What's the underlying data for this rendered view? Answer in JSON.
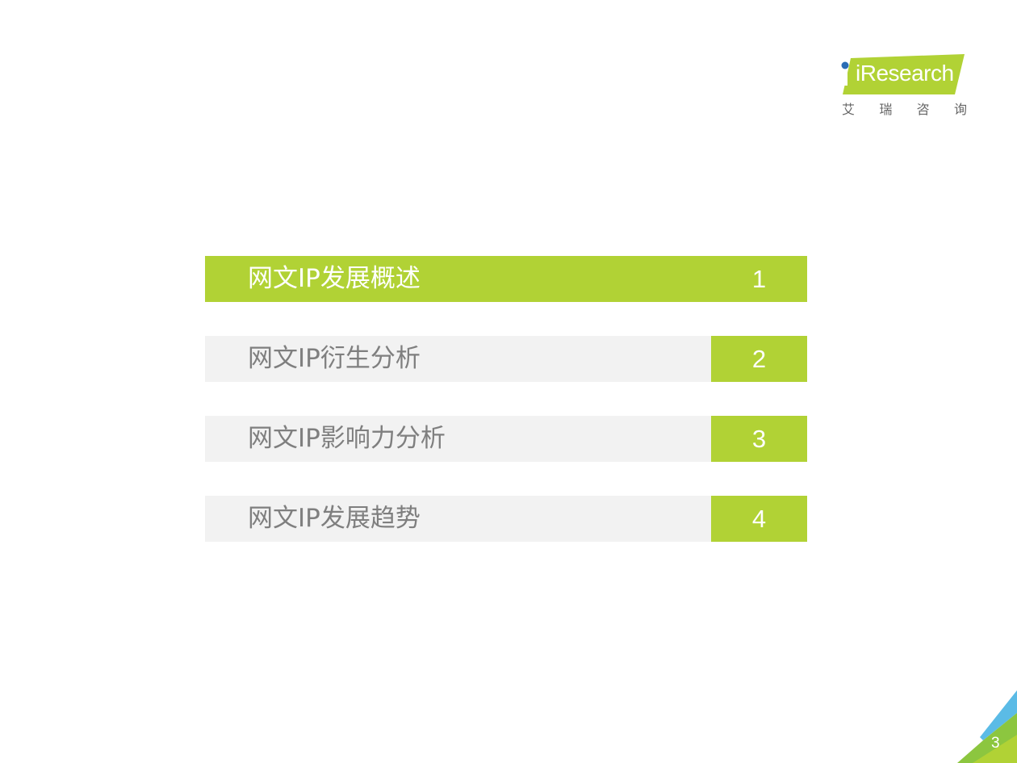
{
  "logo": {
    "brand": "iResearch",
    "cn_chars": [
      "艾",
      "瑞",
      "咨",
      "询"
    ],
    "brand_color": "#b1d235",
    "dot_color": "#2a6db5"
  },
  "toc": {
    "items": [
      {
        "label": "网文IP发展概述",
        "number": "1",
        "active": true
      },
      {
        "label": "网文IP衍生分析",
        "number": "2",
        "active": false
      },
      {
        "label": "网文IP影响力分析",
        "number": "3",
        "active": false
      },
      {
        "label": "网文IP发展趋势",
        "number": "4",
        "active": false
      }
    ],
    "accent_color": "#b1d235"
  },
  "footer": {
    "page_number": "3"
  }
}
